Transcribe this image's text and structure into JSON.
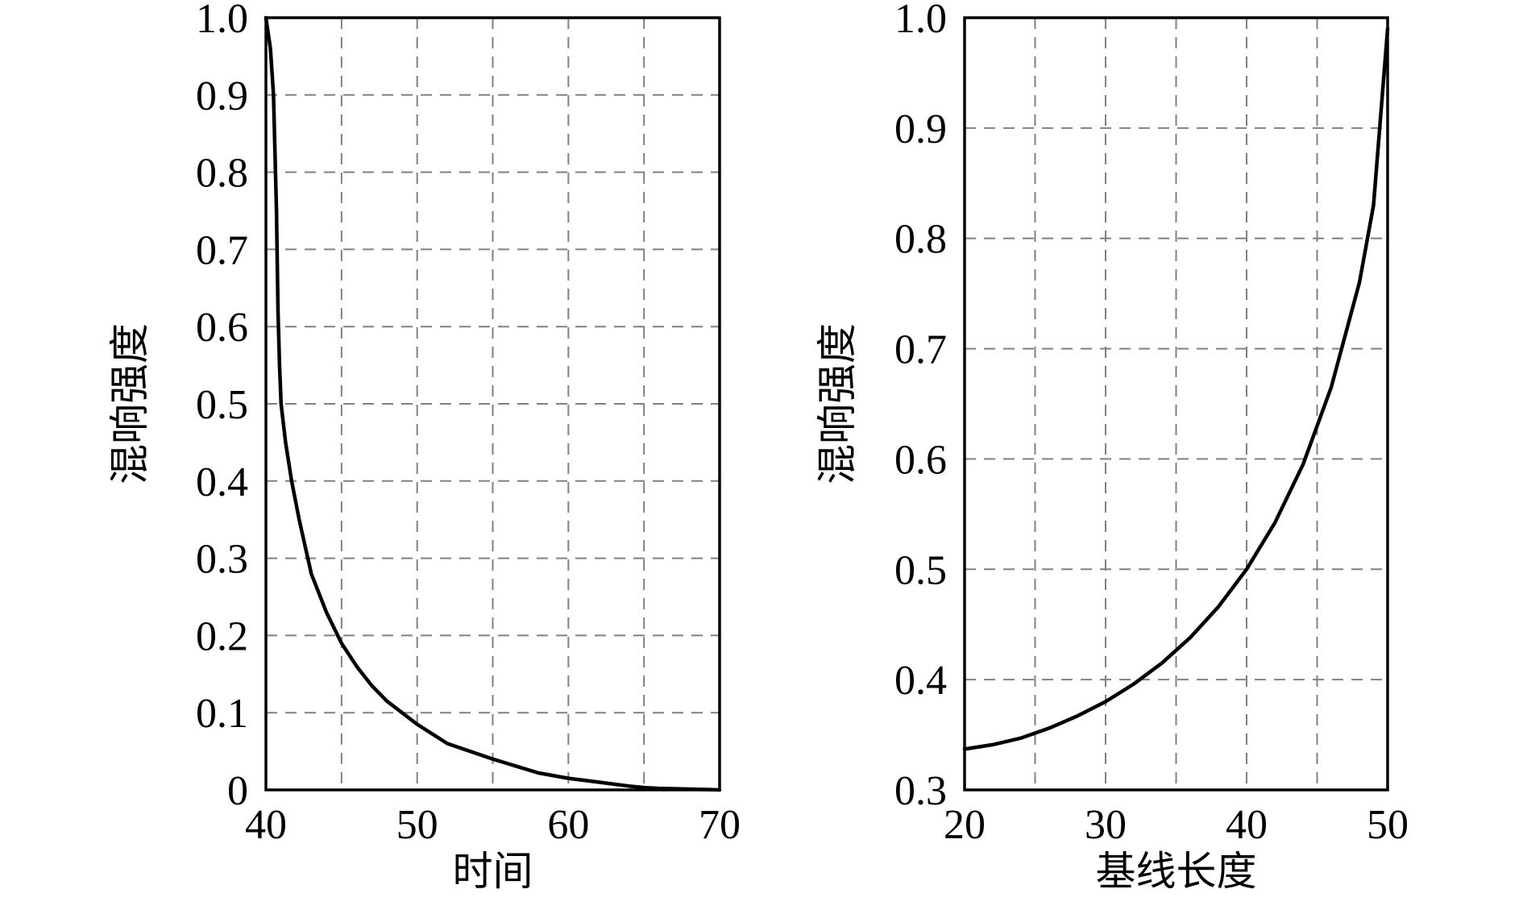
{
  "chart_data": [
    {
      "type": "line",
      "xlabel": "时间",
      "ylabel": "混响强度",
      "xlim": [
        40,
        70
      ],
      "ylim": [
        0,
        1.0
      ],
      "xticks": [
        "40",
        "50",
        "60",
        "70"
      ],
      "yticks": [
        "0",
        "0.1",
        "0.2",
        "0.3",
        "0.4",
        "0.5",
        "0.6",
        "0.7",
        "0.8",
        "0.9",
        "1.0"
      ],
      "xgrid": [
        45,
        50,
        55,
        60,
        65
      ],
      "ygrid": [
        0.1,
        0.2,
        0.3,
        0.4,
        0.5,
        0.6,
        0.7,
        0.8,
        0.9
      ],
      "grid": true,
      "series": [
        {
          "x": [
            40.0,
            40.3,
            40.5,
            40.7,
            40.8,
            40.9,
            41.0,
            41.3,
            41.7,
            42.2,
            43.0,
            44.0,
            45.0,
            46.0,
            47.0,
            48.0,
            49.0,
            50.0,
            52.0,
            55.0,
            58.0,
            60.0,
            62.0,
            64.0,
            65.0,
            66.0,
            68.0,
            70.0
          ],
          "y": [
            1.0,
            0.96,
            0.9,
            0.75,
            0.62,
            0.55,
            0.5,
            0.45,
            0.4,
            0.35,
            0.28,
            0.23,
            0.19,
            0.16,
            0.135,
            0.115,
            0.1,
            0.085,
            0.06,
            0.04,
            0.022,
            0.015,
            0.01,
            0.005,
            0.003,
            0.002,
            0.001,
            0.0
          ]
        }
      ]
    },
    {
      "type": "line",
      "xlabel": "基线长度",
      "ylabel": "混响强度",
      "xlim": [
        20,
        50
      ],
      "ylim": [
        0.3,
        1.0
      ],
      "xticks": [
        "20",
        "30",
        "40",
        "50"
      ],
      "yticks": [
        "0.3",
        "0.4",
        "0.5",
        "0.6",
        "0.7",
        "0.8",
        "0.9",
        "1.0"
      ],
      "xgrid": [
        25,
        30,
        35,
        40,
        45
      ],
      "ygrid": [
        0.4,
        0.5,
        0.6,
        0.7,
        0.8,
        0.9
      ],
      "grid": true,
      "series": [
        {
          "x": [
            20,
            22,
            24,
            26,
            28,
            30,
            32,
            34,
            36,
            38,
            40,
            42,
            44,
            46,
            48,
            49,
            50
          ],
          "y": [
            0.337,
            0.341,
            0.347,
            0.356,
            0.367,
            0.38,
            0.396,
            0.415,
            0.438,
            0.466,
            0.5,
            0.542,
            0.595,
            0.665,
            0.76,
            0.83,
            0.99
          ]
        }
      ]
    }
  ]
}
